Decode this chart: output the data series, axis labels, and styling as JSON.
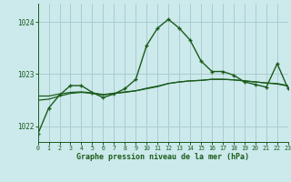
{
  "title": "Graphe pression niveau de la mer (hPa)",
  "background_color": "#cce9ec",
  "grid_color": "#aacdd0",
  "line_color": "#1a5c1a",
  "xlim": [
    0,
    23
  ],
  "ylim": [
    1021.7,
    1024.35
  ],
  "yticks": [
    1022,
    1023,
    1024
  ],
  "xticks": [
    0,
    1,
    2,
    3,
    4,
    5,
    6,
    7,
    8,
    9,
    10,
    11,
    12,
    13,
    14,
    15,
    16,
    17,
    18,
    19,
    20,
    21,
    22,
    23
  ],
  "hours": [
    0,
    1,
    2,
    3,
    4,
    5,
    6,
    7,
    8,
    9,
    10,
    11,
    12,
    13,
    14,
    15,
    16,
    17,
    18,
    19,
    20,
    21,
    22,
    23
  ],
  "pressure_main": [
    1021.85,
    1022.35,
    1022.6,
    1022.78,
    1022.78,
    1022.65,
    1022.55,
    1022.62,
    1022.72,
    1022.9,
    1023.55,
    1023.88,
    1024.05,
    1023.88,
    1023.65,
    1023.25,
    1023.05,
    1023.05,
    1022.98,
    1022.85,
    1022.8,
    1022.75,
    1023.2,
    1022.72
  ],
  "pressure_smooth": [
    1022.5,
    1022.52,
    1022.58,
    1022.63,
    1022.65,
    1022.63,
    1022.6,
    1022.63,
    1022.65,
    1022.68,
    1022.72,
    1022.76,
    1022.82,
    1022.85,
    1022.87,
    1022.88,
    1022.9,
    1022.9,
    1022.89,
    1022.87,
    1022.85,
    1022.83,
    1022.82,
    1022.78
  ],
  "pressure_flat": [
    1022.58,
    1022.58,
    1022.62,
    1022.65,
    1022.66,
    1022.64,
    1022.61,
    1022.63,
    1022.66,
    1022.68,
    1022.73,
    1022.77,
    1022.82,
    1022.85,
    1022.87,
    1022.88,
    1022.9,
    1022.9,
    1022.89,
    1022.87,
    1022.85,
    1022.83,
    1022.81,
    1022.77
  ]
}
